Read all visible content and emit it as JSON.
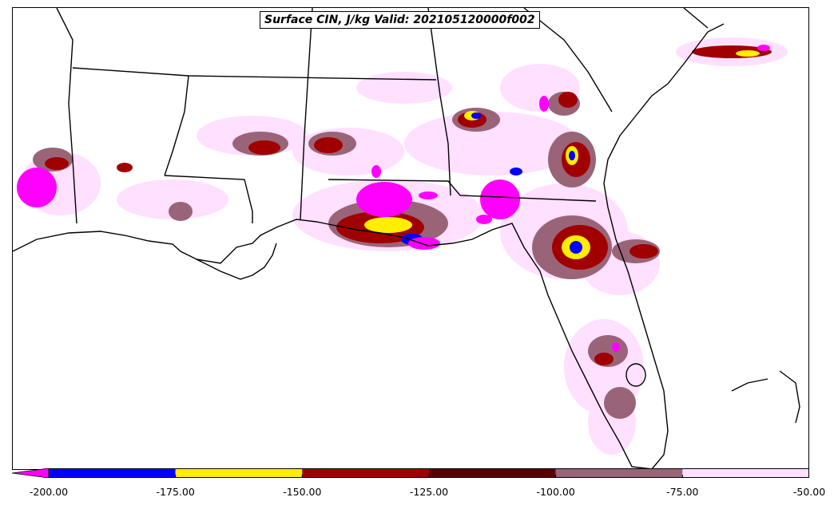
{
  "title": "Surface CIN, J/kg Valid: 202105120000f002",
  "colorbar": {
    "extend": "min",
    "bins": [
      {
        "from": -200,
        "to": -175,
        "color": "#0000ff"
      },
      {
        "from": -175,
        "to": -150,
        "color": "#ffee00"
      },
      {
        "from": -150,
        "to": -125,
        "color": "#a00000"
      },
      {
        "from": -125,
        "to": -100,
        "color": "#5a0000"
      },
      {
        "from": -100,
        "to": -75,
        "color": "#9a6478"
      },
      {
        "from": -75,
        "to": -50,
        "color": "#ffe0ff"
      }
    ],
    "under_color": "#ff00ff",
    "ticks": [
      "-200.00",
      "-175.00",
      "-150.00",
      "-125.00",
      "-100.00",
      "-75.00",
      "-50.00"
    ]
  },
  "map": {
    "region": "Southeastern United States",
    "field": "Surface CIN"
  }
}
